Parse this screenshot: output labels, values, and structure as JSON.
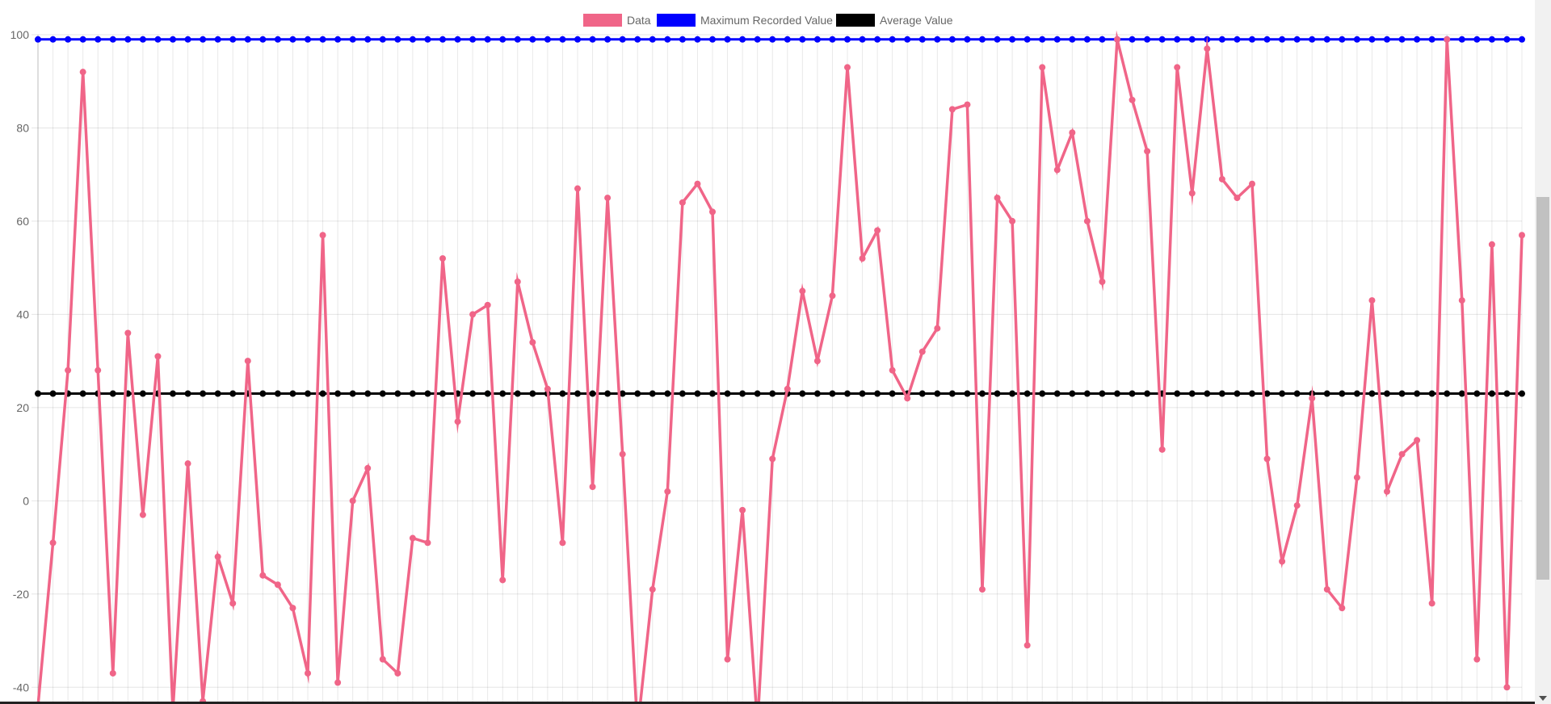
{
  "chart_data": {
    "type": "line",
    "title": "",
    "xlabel": "",
    "ylabel": "",
    "ylim": [
      -50,
      100
    ],
    "yticks": [
      -40,
      -20,
      0,
      20,
      40,
      60,
      80,
      100
    ],
    "grid": true,
    "legend_position": "top-center",
    "series": [
      {
        "name": "Data",
        "color": "#f06588",
        "values": [
          -44,
          -9,
          28,
          92,
          28,
          -37,
          36,
          -3,
          31,
          -45,
          8,
          -43,
          -12,
          -22,
          30,
          -16,
          -18,
          -23,
          -37,
          57,
          -39,
          0,
          7,
          -34,
          -37,
          -8,
          -9,
          52,
          17,
          40,
          42,
          -17,
          47,
          34,
          24,
          -9,
          67,
          3,
          65,
          10,
          -49,
          -19,
          2,
          64,
          68,
          62,
          -34,
          -2,
          -48,
          9,
          24,
          45,
          30,
          44,
          93,
          52,
          58,
          28,
          22,
          32,
          37,
          84,
          85,
          -19,
          65,
          60,
          -31,
          93,
          71,
          79,
          60,
          47,
          99,
          86,
          75,
          11,
          93,
          66,
          97,
          69,
          65,
          68,
          9,
          -13,
          -1,
          22,
          -19,
          -23,
          5,
          43,
          2,
          10,
          13,
          -22,
          99,
          43,
          -34,
          55,
          -40,
          57
        ]
      },
      {
        "name": "Maximum Recorded Value",
        "color": "#0000ff",
        "constant": 99
      },
      {
        "name": "Average Value",
        "color": "#000000",
        "constant": 23
      }
    ]
  }
}
